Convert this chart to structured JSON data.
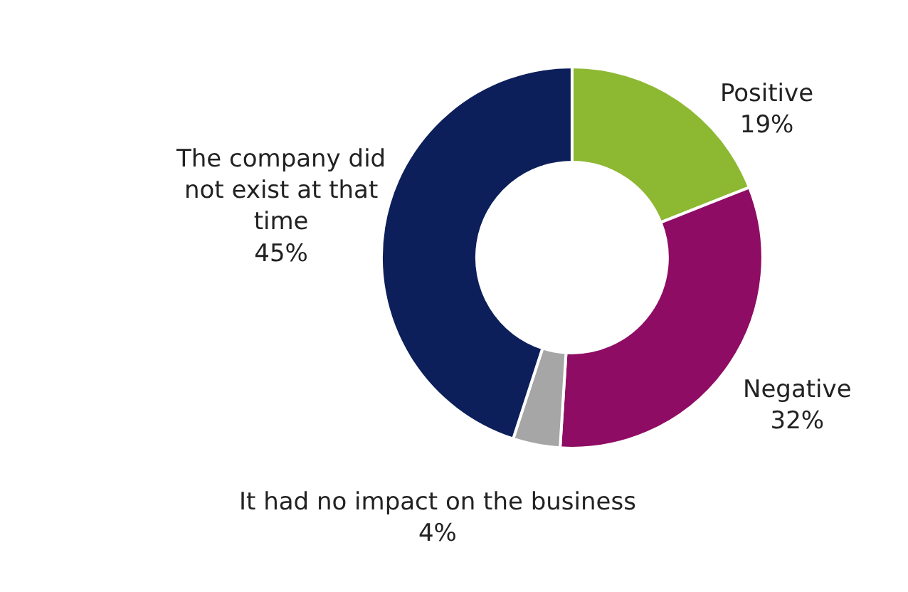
{
  "chart_data": {
    "type": "donut",
    "categories": [
      "Positive",
      "Negative",
      "It had no impact on the business",
      "The company did not exist at that time"
    ],
    "values": [
      19,
      32,
      4,
      45
    ],
    "value_labels": [
      "19%",
      "32%",
      "4%",
      "45%"
    ],
    "colors": [
      "#8db832",
      "#8e0c63",
      "#a6a6a6",
      "#0c1f5a"
    ],
    "legend": false
  }
}
